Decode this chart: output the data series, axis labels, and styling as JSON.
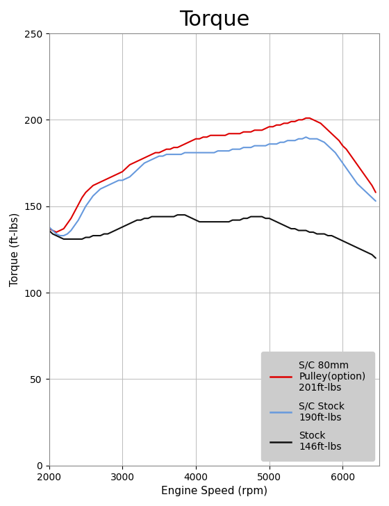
{
  "title": "Torque",
  "xlabel": "Engine Speed (rpm)",
  "ylabel": "Torque (ft-lbs)",
  "xlim": [
    2000,
    6500
  ],
  "ylim": [
    0,
    250
  ],
  "xticks": [
    2000,
    3000,
    4000,
    5000,
    6000
  ],
  "yticks": [
    0,
    50,
    100,
    150,
    200,
    250
  ],
  "background_color": "#ffffff",
  "grid_color": "#bbbbbb",
  "title_fontsize": 22,
  "label_fontsize": 11,
  "tick_fontsize": 10,
  "legend_fontsize": 10,
  "legend_facecolor": "#cccccc",
  "series": [
    {
      "label": "S/C 80mm\nPulley(option)\n201ft-lbs",
      "color": "#dd0000",
      "linewidth": 1.5,
      "rpm": [
        2000,
        2050,
        2100,
        2150,
        2200,
        2250,
        2300,
        2350,
        2400,
        2450,
        2500,
        2550,
        2600,
        2650,
        2700,
        2750,
        2800,
        2850,
        2900,
        2950,
        3000,
        3050,
        3100,
        3150,
        3200,
        3250,
        3300,
        3350,
        3400,
        3450,
        3500,
        3550,
        3600,
        3650,
        3700,
        3750,
        3800,
        3850,
        3900,
        3950,
        4000,
        4050,
        4100,
        4150,
        4200,
        4250,
        4300,
        4350,
        4400,
        4450,
        4500,
        4550,
        4600,
        4650,
        4700,
        4750,
        4800,
        4850,
        4900,
        4950,
        5000,
        5050,
        5100,
        5150,
        5200,
        5250,
        5300,
        5350,
        5400,
        5450,
        5500,
        5550,
        5600,
        5650,
        5700,
        5750,
        5800,
        5850,
        5900,
        5950,
        6000,
        6050,
        6100,
        6150,
        6200,
        6250,
        6300,
        6350,
        6400,
        6450
      ],
      "torque": [
        137,
        136,
        135,
        136,
        137,
        140,
        143,
        147,
        151,
        155,
        158,
        160,
        162,
        163,
        164,
        165,
        166,
        167,
        168,
        169,
        170,
        172,
        174,
        175,
        176,
        177,
        178,
        179,
        180,
        181,
        181,
        182,
        183,
        183,
        184,
        184,
        185,
        186,
        187,
        188,
        189,
        189,
        190,
        190,
        191,
        191,
        191,
        191,
        191,
        192,
        192,
        192,
        192,
        193,
        193,
        193,
        194,
        194,
        194,
        195,
        196,
        196,
        197,
        197,
        198,
        198,
        199,
        199,
        200,
        200,
        201,
        201,
        200,
        199,
        198,
        196,
        194,
        192,
        190,
        188,
        185,
        183,
        180,
        177,
        174,
        171,
        168,
        165,
        162,
        158
      ]
    },
    {
      "label": "S/C Stock\n190ft-lbs",
      "color": "#6699dd",
      "linewidth": 1.5,
      "rpm": [
        2000,
        2050,
        2100,
        2150,
        2200,
        2250,
        2300,
        2350,
        2400,
        2450,
        2500,
        2550,
        2600,
        2650,
        2700,
        2750,
        2800,
        2850,
        2900,
        2950,
        3000,
        3050,
        3100,
        3150,
        3200,
        3250,
        3300,
        3350,
        3400,
        3450,
        3500,
        3550,
        3600,
        3650,
        3700,
        3750,
        3800,
        3850,
        3900,
        3950,
        4000,
        4050,
        4100,
        4150,
        4200,
        4250,
        4300,
        4350,
        4400,
        4450,
        4500,
        4550,
        4600,
        4650,
        4700,
        4750,
        4800,
        4850,
        4900,
        4950,
        5000,
        5050,
        5100,
        5150,
        5200,
        5250,
        5300,
        5350,
        5400,
        5450,
        5500,
        5550,
        5600,
        5650,
        5700,
        5750,
        5800,
        5850,
        5900,
        5950,
        6000,
        6050,
        6100,
        6150,
        6200,
        6250,
        6300,
        6350,
        6400,
        6450
      ],
      "torque": [
        138,
        136,
        134,
        133,
        133,
        134,
        136,
        139,
        142,
        146,
        150,
        153,
        156,
        158,
        160,
        161,
        162,
        163,
        164,
        165,
        165,
        166,
        167,
        169,
        171,
        173,
        175,
        176,
        177,
        178,
        179,
        179,
        180,
        180,
        180,
        180,
        180,
        181,
        181,
        181,
        181,
        181,
        181,
        181,
        181,
        181,
        182,
        182,
        182,
        182,
        183,
        183,
        183,
        184,
        184,
        184,
        185,
        185,
        185,
        185,
        186,
        186,
        186,
        187,
        187,
        188,
        188,
        188,
        189,
        189,
        190,
        189,
        189,
        189,
        188,
        187,
        185,
        183,
        181,
        178,
        175,
        172,
        169,
        166,
        163,
        161,
        159,
        157,
        155,
        153
      ]
    },
    {
      "label": "Stock\n146ft-lbs",
      "color": "#111111",
      "linewidth": 1.5,
      "rpm": [
        2000,
        2050,
        2100,
        2150,
        2200,
        2250,
        2300,
        2350,
        2400,
        2450,
        2500,
        2550,
        2600,
        2650,
        2700,
        2750,
        2800,
        2850,
        2900,
        2950,
        3000,
        3050,
        3100,
        3150,
        3200,
        3250,
        3300,
        3350,
        3400,
        3450,
        3500,
        3550,
        3600,
        3650,
        3700,
        3750,
        3800,
        3850,
        3900,
        3950,
        4000,
        4050,
        4100,
        4150,
        4200,
        4250,
        4300,
        4350,
        4400,
        4450,
        4500,
        4550,
        4600,
        4650,
        4700,
        4750,
        4800,
        4850,
        4900,
        4950,
        5000,
        5050,
        5100,
        5150,
        5200,
        5250,
        5300,
        5350,
        5400,
        5450,
        5500,
        5550,
        5600,
        5650,
        5700,
        5750,
        5800,
        5850,
        5900,
        5950,
        6000,
        6050,
        6100,
        6150,
        6200,
        6250,
        6300,
        6350,
        6400,
        6450
      ],
      "torque": [
        136,
        134,
        133,
        132,
        131,
        131,
        131,
        131,
        131,
        131,
        132,
        132,
        133,
        133,
        133,
        134,
        134,
        135,
        136,
        137,
        138,
        139,
        140,
        141,
        142,
        142,
        143,
        143,
        144,
        144,
        144,
        144,
        144,
        144,
        144,
        145,
        145,
        145,
        144,
        143,
        142,
        141,
        141,
        141,
        141,
        141,
        141,
        141,
        141,
        141,
        142,
        142,
        142,
        143,
        143,
        144,
        144,
        144,
        144,
        143,
        143,
        142,
        141,
        140,
        139,
        138,
        137,
        137,
        136,
        136,
        136,
        135,
        135,
        134,
        134,
        134,
        133,
        133,
        132,
        131,
        130,
        129,
        128,
        127,
        126,
        125,
        124,
        123,
        122,
        120
      ]
    }
  ]
}
